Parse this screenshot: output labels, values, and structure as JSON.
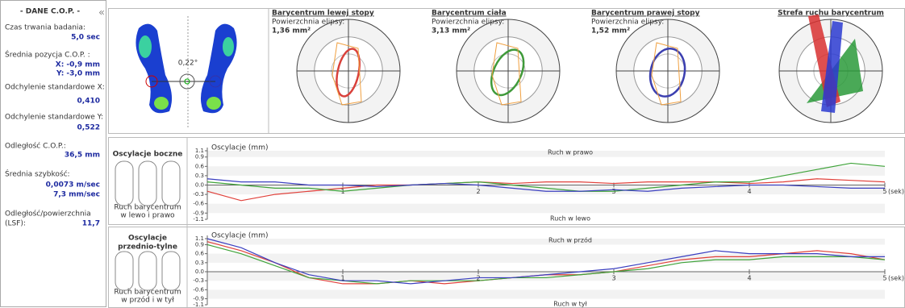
{
  "cop_panel": {
    "title": "- DANE C.O.P. -",
    "duration_label": "Czas trwania badania:",
    "duration": "5,0 sec",
    "mean_pos_label": "Średnia pozycja C.O.P. :",
    "mean_x": "X: -0,9 mm",
    "mean_y": "Y: -3,0 mm",
    "sd_x_label": "Odchylenie standardowe X:",
    "sd_x": "0,410",
    "sd_y_label": "Odchylenie standardowe Y:",
    "sd_y": "0,522",
    "dist_label": "Odległość C.O.P.:",
    "dist": "36,5 mm",
    "speed_label": "Średnia szybkość:",
    "speed_ms": "0,0073 m/sec",
    "speed_mms": "7,3 mm/sec",
    "lsf_label": [
      "Odległość/powierzchnia",
      "(LSF):"
    ],
    "lsf": "11,7"
  },
  "footprint": {
    "angle": "0,22°"
  },
  "stabilograms": [
    {
      "title": "Barycentrum lewej stopy",
      "area_label": "Powierzchnia elipsy:",
      "area": "1,36 mm²",
      "color": "#d9413b"
    },
    {
      "title": "Barycentrum ciała",
      "area_label": "Powierzchnia elipsy:",
      "area": "3,13 mm²",
      "color": "#3f9a3a"
    },
    {
      "title": "Barycentrum prawej stopy",
      "area_label": "Powierzchnia elipsy:",
      "area": "1,52 mm²",
      "color": "#3b3fb0"
    },
    {
      "title": "Strefa ruchu barycentrum"
    }
  ],
  "side_panels": [
    {
      "title": "Oscylacje boczne",
      "caption": [
        "Ruch barycentrum",
        "w lewo i prawo"
      ]
    },
    {
      "title": [
        "Oscylacje",
        "przednio-tylne"
      ],
      "caption": [
        "Ruch barycentrum",
        "w przód i w tył"
      ]
    }
  ],
  "chart_data": [
    {
      "type": "line",
      "y_label": "Oscylacje (mm)",
      "top_note": "Ruch w prawo",
      "bottom_note": "Ruch w lewo",
      "x_label": "(sek)",
      "x": [
        0,
        0.25,
        0.5,
        0.75,
        1,
        1.25,
        1.5,
        1.75,
        2,
        2.25,
        2.5,
        2.75,
        3,
        3.25,
        3.5,
        3.75,
        4,
        4.25,
        4.5,
        4.75,
        5
      ],
      "series": [
        {
          "color": "#e0403a",
          "values": [
            -0.2,
            -0.5,
            -0.3,
            -0.2,
            -0.1,
            0,
            0,
            0.05,
            0.1,
            0.05,
            0.1,
            0.1,
            0.05,
            0.1,
            0.1,
            0.1,
            0.05,
            0.1,
            0.2,
            0.15,
            0.1
          ]
        },
        {
          "color": "#3fa33a",
          "values": [
            0.1,
            0,
            -0.1,
            -0.1,
            -0.2,
            -0.1,
            0,
            0.05,
            0.1,
            0,
            -0.1,
            -0.2,
            -0.2,
            -0.1,
            0,
            0.1,
            0.1,
            0.3,
            0.5,
            0.7,
            0.6
          ]
        },
        {
          "color": "#3b3fc0",
          "values": [
            0.2,
            0.1,
            0.1,
            0,
            0,
            -0.05,
            0,
            0.05,
            0,
            -0.1,
            -0.2,
            -0.2,
            -0.15,
            -0.2,
            -0.1,
            -0.05,
            0,
            0,
            -0.05,
            -0.1,
            -0.1
          ]
        }
      ],
      "xlim": [
        0,
        5
      ],
      "ylim": [
        -1.1,
        1.1
      ],
      "xticks": [
        1,
        2,
        3,
        4,
        5
      ],
      "yticks": [
        1.1,
        0.9,
        0.6,
        0.3,
        {
          "value": 0,
          "label": "0.0"
        },
        -0.3,
        -0.6,
        -0.9,
        -1.1
      ]
    },
    {
      "type": "line",
      "y_label": "Oscylacje (mm)",
      "top_note": "Ruch w przód",
      "bottom_note": "Ruch w tył",
      "x_label": "(sek)",
      "x": [
        0,
        0.25,
        0.5,
        0.75,
        1,
        1.25,
        1.5,
        1.75,
        2,
        2.25,
        2.5,
        2.75,
        3,
        3.25,
        3.5,
        3.75,
        4,
        4.25,
        4.5,
        4.75,
        5
      ],
      "series": [
        {
          "color": "#e0403a",
          "values": [
            1.0,
            0.7,
            0.3,
            -0.2,
            -0.4,
            -0.4,
            -0.3,
            -0.4,
            -0.3,
            -0.2,
            -0.1,
            -0.1,
            0,
            0.2,
            0.4,
            0.5,
            0.5,
            0.6,
            0.7,
            0.6,
            0.4
          ]
        },
        {
          "color": "#3fa33a",
          "values": [
            0.9,
            0.6,
            0.2,
            -0.2,
            -0.3,
            -0.4,
            -0.3,
            -0.3,
            -0.3,
            -0.2,
            -0.2,
            -0.1,
            0,
            0.1,
            0.3,
            0.4,
            0.4,
            0.5,
            0.5,
            0.5,
            0.4
          ]
        },
        {
          "color": "#3b3fc0",
          "values": [
            1.1,
            0.8,
            0.3,
            -0.1,
            -0.3,
            -0.3,
            -0.4,
            -0.3,
            -0.2,
            -0.2,
            -0.1,
            0,
            0.1,
            0.3,
            0.5,
            0.7,
            0.6,
            0.6,
            0.6,
            0.5,
            0.5
          ]
        }
      ],
      "xlim": [
        0,
        5
      ],
      "ylim": [
        -1.1,
        1.1
      ],
      "xticks": [
        1,
        2,
        3,
        4,
        5
      ],
      "yticks": [
        1.1,
        0.9,
        0.6,
        0.3,
        {
          "value": 0,
          "label": "0.0"
        },
        -0.3,
        -0.6,
        -0.9,
        -1.1
      ]
    }
  ]
}
